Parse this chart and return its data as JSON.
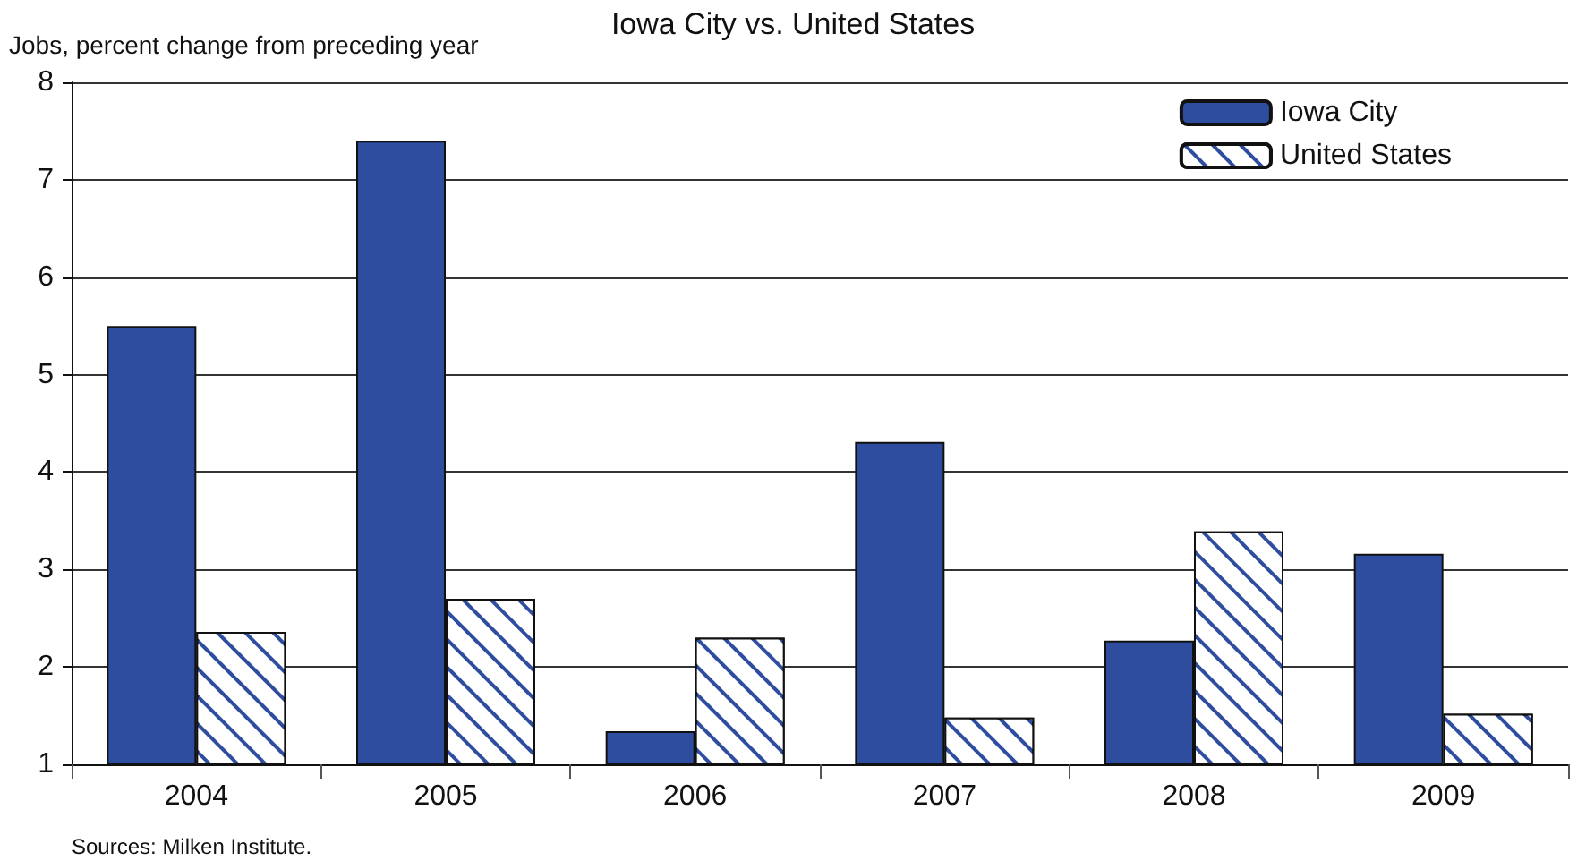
{
  "chart_data": {
    "type": "bar",
    "title": "Iowa City vs. United States",
    "ylabel": "Jobs, percent change from preceding year",
    "categories": [
      "2004",
      "2005",
      "2006",
      "2007",
      "2008",
      "2009"
    ],
    "series": [
      {
        "name": "Iowa City",
        "color": "#2e4d9f",
        "values": [
          5.5,
          7.4,
          1.34,
          4.31,
          2.27,
          3.16
        ]
      },
      {
        "name": "United States",
        "color": "#2e4d9f",
        "values": [
          2.36,
          2.7,
          2.3,
          1.48,
          3.39,
          1.52
        ]
      }
    ],
    "ylim": [
      1,
      8
    ],
    "yticks": [
      1,
      2,
      3,
      4,
      5,
      6,
      7,
      8
    ],
    "grid": "y",
    "legend": "top right",
    "annotations": [
      "Sources: Milken Institute."
    ]
  }
}
